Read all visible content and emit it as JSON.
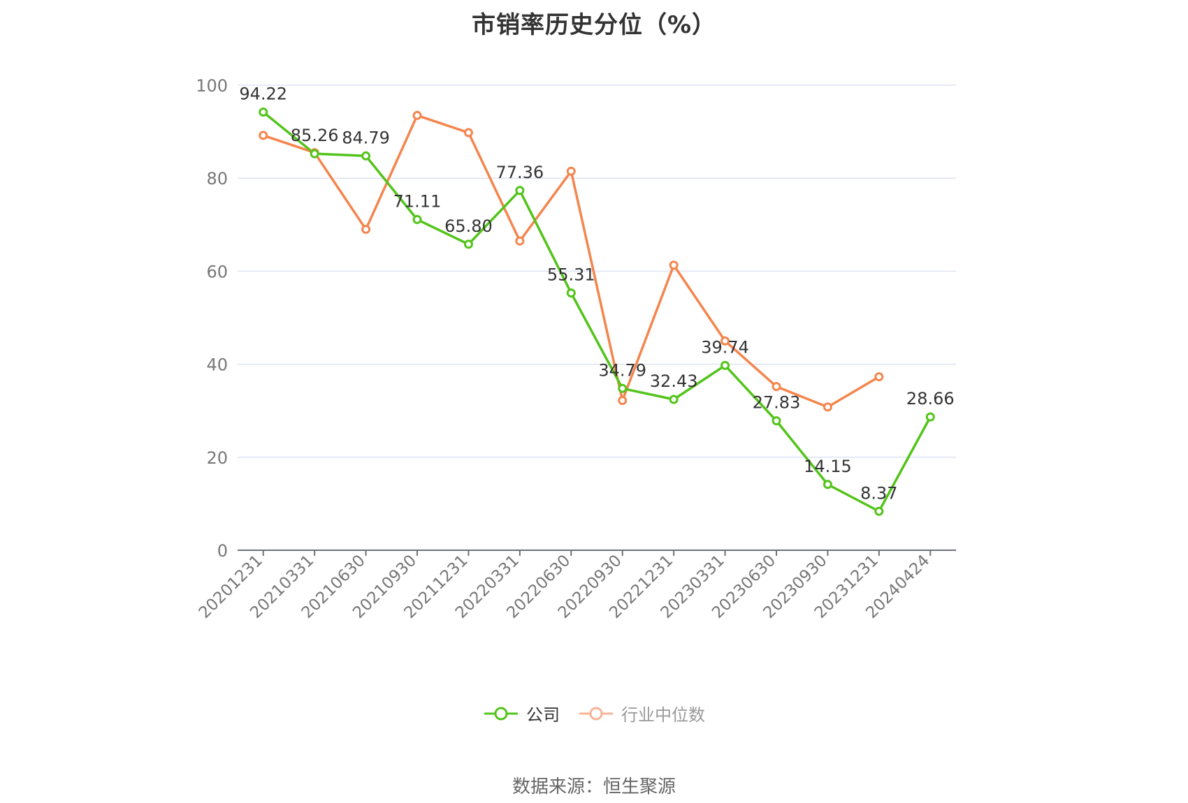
{
  "chart_data": {
    "type": "line",
    "title": "市销率历史分位（%）",
    "categories": [
      "20201231",
      "20210331",
      "20210630",
      "20210930",
      "20211231",
      "20220331",
      "20220630",
      "20220930",
      "20221231",
      "20230331",
      "20230630",
      "20230930",
      "20231231",
      "20240424"
    ],
    "series": [
      {
        "name": "公司",
        "color": "#52c41a",
        "values": [
          94.22,
          85.26,
          84.79,
          71.11,
          65.8,
          77.36,
          55.31,
          34.79,
          32.43,
          39.74,
          27.83,
          14.15,
          8.37,
          28.66
        ],
        "labels": [
          "94.22",
          "85.26",
          "84.79",
          "71.11",
          "65.80",
          "77.36",
          "55.31",
          "34.79",
          "32.43",
          "39.74",
          "27.83",
          "14.15",
          "8.37",
          "28.66"
        ]
      },
      {
        "name": "行业中位数",
        "color": "#f4854d",
        "values": [
          89.2,
          85.5,
          69.0,
          93.5,
          89.8,
          66.5,
          81.5,
          32.2,
          61.3,
          45.0,
          35.2,
          30.8,
          37.3,
          null
        ]
      }
    ],
    "yticks": [
      "0",
      "20",
      "40",
      "60",
      "80",
      "100"
    ],
    "ylim": [
      0,
      100
    ],
    "grid": true,
    "legend_position": "bottom-center"
  },
  "source": "数据来源：恒生聚源"
}
